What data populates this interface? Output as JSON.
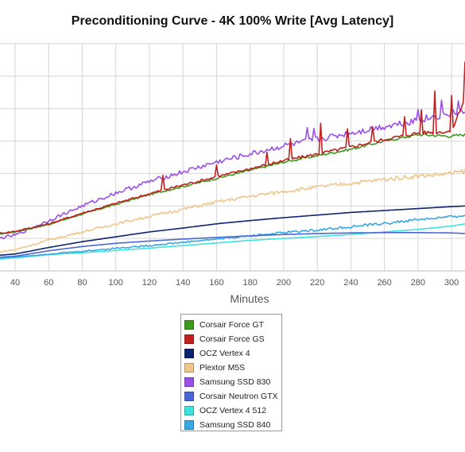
{
  "chart_data": {
    "type": "line",
    "title": "Preconditioning Curve - 4K 100% Write [Avg Latency]",
    "xlabel": "Minutes",
    "ylabel": "",
    "x_ticks": [
      40,
      60,
      80,
      100,
      120,
      140,
      160,
      180,
      200,
      220,
      240,
      260,
      280,
      300
    ],
    "x_tick_labels": [
      "40",
      "60",
      "80",
      "100",
      "120",
      "140",
      "160",
      "180",
      "200",
      "220",
      "240",
      "260",
      "280",
      "300"
    ],
    "xlim": [
      31,
      308
    ],
    "ylim": [
      0,
      7
    ],
    "y_gridlines": [
      1,
      2,
      3,
      4,
      5,
      6,
      7
    ],
    "y_tick_labels": [],
    "grid": true,
    "legend": "bottom-center",
    "x": [
      30,
      40,
      60,
      80,
      100,
      120,
      140,
      160,
      180,
      200,
      220,
      240,
      260,
      280,
      300,
      308
    ],
    "series": [
      {
        "name": "Corsair Force GT",
        "color": "#3c9a1e",
        "values": [
          1.13,
          1.2,
          1.43,
          1.75,
          2.05,
          2.35,
          2.6,
          2.85,
          3.1,
          3.35,
          3.55,
          3.75,
          4.0,
          4.2,
          4.15,
          4.2
        ],
        "noise": 0.03
      },
      {
        "name": "Corsair Force GS",
        "color": "#c0201f",
        "values": [
          1.15,
          1.22,
          1.45,
          1.78,
          2.08,
          2.38,
          2.65,
          2.9,
          3.15,
          3.4,
          3.6,
          3.82,
          4.05,
          4.25,
          4.3,
          5.35
        ],
        "noise": 0.04,
        "spikes": [
          [
            128,
            0.45
          ],
          [
            160,
            0.4
          ],
          [
            190,
            0.35
          ],
          [
            204,
            0.6
          ],
          [
            222,
            0.95
          ],
          [
            238,
            0.55
          ],
          [
            253,
            0.5
          ],
          [
            272,
            0.55
          ],
          [
            282,
            0.7
          ],
          [
            290,
            1.25
          ],
          [
            300,
            1.05
          ],
          [
            308,
            1.1
          ]
        ]
      },
      {
        "name": "OCZ Vertex 4",
        "color": "#0d2270",
        "values": [
          0.48,
          0.52,
          0.72,
          0.9,
          1.05,
          1.2,
          1.32,
          1.45,
          1.55,
          1.64,
          1.72,
          1.8,
          1.86,
          1.92,
          1.98,
          2.0
        ],
        "noise": 0.0
      },
      {
        "name": "Plextor M5S",
        "color": "#f0c58a",
        "values": [
          0.58,
          0.65,
          0.95,
          1.2,
          1.45,
          1.68,
          1.9,
          2.12,
          2.3,
          2.45,
          2.58,
          2.7,
          2.82,
          2.92,
          3.0,
          3.08
        ],
        "noise": 0.05
      },
      {
        "name": "Samsung SSD 830",
        "color": "#9b4fe8",
        "values": [
          1.0,
          1.1,
          1.55,
          2.0,
          2.4,
          2.75,
          3.05,
          3.35,
          3.6,
          3.85,
          4.05,
          4.25,
          4.45,
          4.65,
          4.85,
          4.9
        ],
        "noise": 0.08,
        "spikes": [
          [
            214,
            0.35
          ],
          [
            218,
            0.3
          ],
          [
            280,
            0.35
          ],
          [
            294,
            0.5
          ],
          [
            304,
            0.45
          ]
        ]
      },
      {
        "name": "Corsair Neutron GTX",
        "color": "#4a67d6",
        "values": [
          0.42,
          0.45,
          0.62,
          0.75,
          0.85,
          0.92,
          0.98,
          1.03,
          1.08,
          1.12,
          1.15,
          1.17,
          1.18,
          1.18,
          1.17,
          1.15
        ],
        "noise": 0.0
      },
      {
        "name": "OCZ Vertex 4 512",
        "color": "#3de3de",
        "values": [
          0.36,
          0.4,
          0.5,
          0.56,
          0.63,
          0.7,
          0.78,
          0.86,
          0.94,
          1.0,
          1.06,
          1.12,
          1.2,
          1.28,
          1.38,
          1.45
        ],
        "noise": 0.0
      },
      {
        "name": "Samsung SSD 840",
        "color": "#35a7e3",
        "values": [
          0.4,
          0.43,
          0.52,
          0.6,
          0.7,
          0.78,
          0.88,
          0.98,
          1.08,
          1.18,
          1.26,
          1.36,
          1.46,
          1.58,
          1.66,
          1.72
        ],
        "noise": 0.03
      }
    ]
  }
}
